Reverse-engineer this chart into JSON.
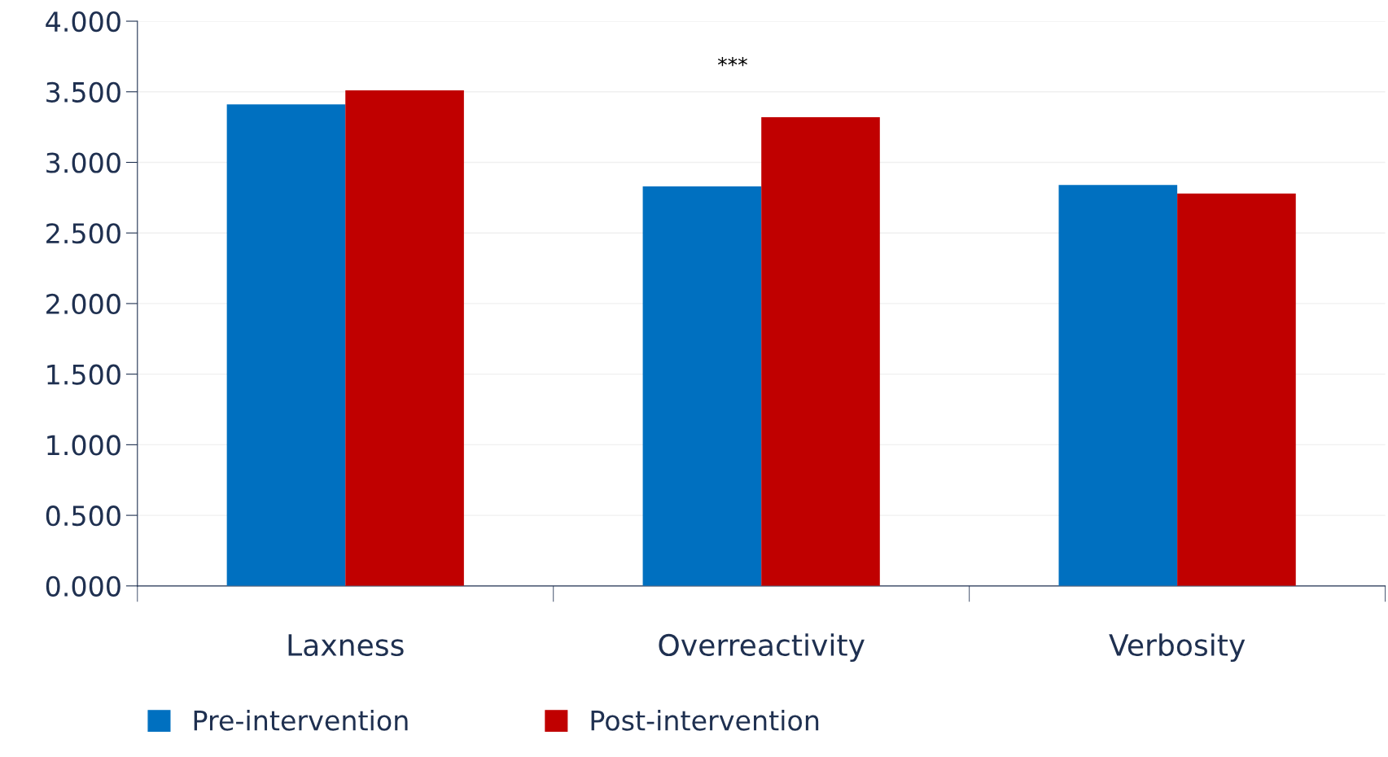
{
  "chart_data": {
    "type": "bar",
    "categories": [
      "Laxness",
      "Overreactivity",
      "Verbosity"
    ],
    "series": [
      {
        "name": "Pre-intervention",
        "color": "#0070c0",
        "values": [
          3.41,
          2.83,
          2.84
        ]
      },
      {
        "name": "Post-intervention",
        "color": "#c00000",
        "values": [
          3.51,
          3.32,
          2.78
        ]
      }
    ],
    "ylim": [
      0,
      4
    ],
    "yticks": [
      {
        "value": 0,
        "label": "0.000"
      },
      {
        "value": 0.5,
        "label": "0.500"
      },
      {
        "value": 1,
        "label": "1.000"
      },
      {
        "value": 1.5,
        "label": "1.500"
      },
      {
        "value": 2,
        "label": "2.000"
      },
      {
        "value": 2.5,
        "label": "2.500"
      },
      {
        "value": 3,
        "label": "3.000"
      },
      {
        "value": 3.5,
        "label": "3.500"
      },
      {
        "value": 4,
        "label": "4.000"
      }
    ],
    "grid": "y",
    "legend": "bottom left",
    "annotations": [
      "***"
    ]
  }
}
